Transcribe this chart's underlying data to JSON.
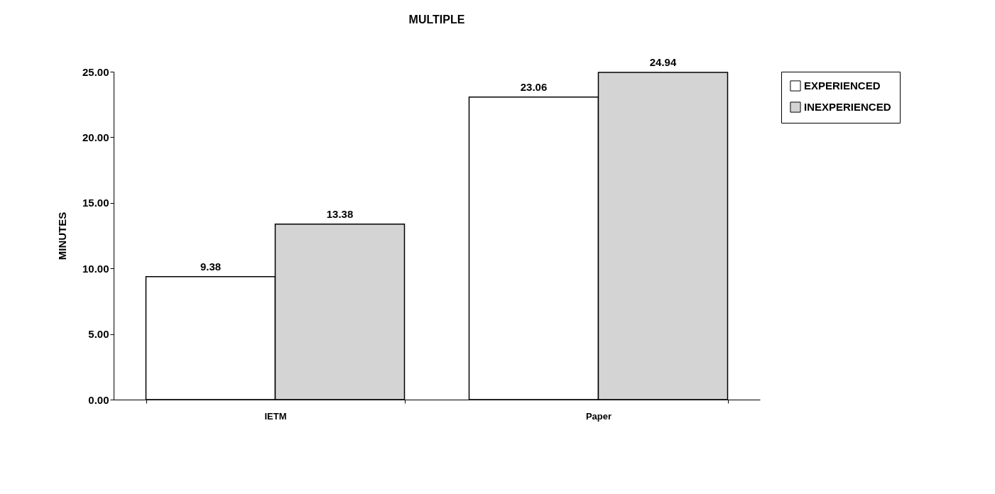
{
  "chart_data": {
    "type": "bar",
    "title": "MULTIPLE",
    "ylabel": "MINUTES",
    "categories": [
      "IETM",
      "Paper"
    ],
    "series": [
      {
        "name": "EXPERIENCED",
        "color": "#ffffff",
        "values": [
          9.38,
          23.06
        ]
      },
      {
        "name": "INEXPERIENCED",
        "color": "#d4d4d4",
        "values": [
          13.38,
          24.94
        ]
      }
    ],
    "ylim": [
      0,
      25
    ],
    "yticks": [
      {
        "value": 0,
        "label": "0.00"
      },
      {
        "value": 5,
        "label": "5.00"
      },
      {
        "value": 10,
        "label": "10.00"
      },
      {
        "value": 15,
        "label": "15.00"
      },
      {
        "value": 20,
        "label": "20.00"
      },
      {
        "value": 25,
        "label": "25.00"
      }
    ],
    "data_labels": true,
    "legend": "right",
    "grid": false
  }
}
